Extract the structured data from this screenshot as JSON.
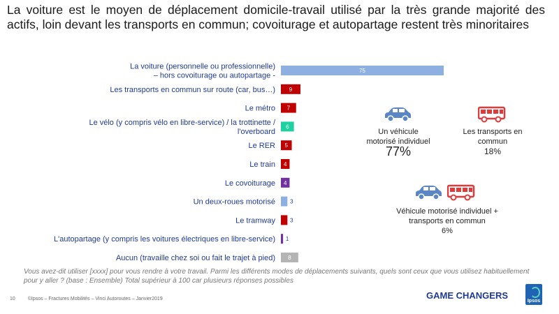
{
  "title": "La voiture est le moyen de déplacement domicile-travail utilisé par la très grande majorité des actifs, loin devant les transports en commun; covoiturage et autopartage restent très minoritaires",
  "chart_data": {
    "type": "bar",
    "orientation": "horizontal",
    "categories": [
      [
        "La voiture (personnelle ou professionnelle)",
        "– hors covoiturage ou autopartage -"
      ],
      [
        "Les transports en commun sur route (car, bus…)"
      ],
      [
        "Le métro"
      ],
      [
        "Le vélo (y compris vélo en libre-service) / la trottinette /",
        "l'overboard"
      ],
      [
        "Le RER"
      ],
      [
        "Le train"
      ],
      [
        "Le covoiturage"
      ],
      [
        "Un deux-roues motorisé"
      ],
      [
        "Le tramway"
      ],
      [
        "L'autopartage (y compris les voitures électriques en libre-service)"
      ],
      [
        "Aucun (travaille chez soi ou fait le trajet à pied)"
      ]
    ],
    "values": [
      75,
      9,
      7,
      6,
      5,
      4,
      4,
      3,
      3,
      1,
      8
    ],
    "colors": [
      "#8db0e0",
      "#c00000",
      "#c00000",
      "#1fd0a0",
      "#c00000",
      "#c00000",
      "#7030a0",
      "#8db0e0",
      "#c00000",
      "#7030a0",
      "#b4b4b4"
    ],
    "xlim": [
      0,
      75
    ]
  },
  "summary": {
    "car": {
      "label_lines": [
        "Un véhicule",
        "motorisé individuel"
      ],
      "pct": "77%",
      "icon": "car-icon",
      "color": "#5b86c5"
    },
    "transit": {
      "label_lines": [
        "Les transports en",
        "commun"
      ],
      "pct": "18%",
      "icon": "bus-icon",
      "color": "#e03a3a"
    },
    "both": {
      "label_lines": [
        "Véhicule motorisé individuel +",
        "transports en commun"
      ],
      "pct": "6%"
    }
  },
  "question": "Vous avez-dit utiliser [xxxx] pour vous rendre à votre travail. Parmi les différents modes de déplacements suivants, quels sont ceux que vous utilisez habituellement pour y aller ? (base : Ensemble) Total supérieur à 100 car plusieurs réponses possibles",
  "footer": {
    "page": "10",
    "source": "©Ipsos – Fractures Mobilités – Vinci Autoroutes – Janvier2019"
  },
  "brand": "GAME CHANGERS",
  "logo_text": "Ipsos"
}
